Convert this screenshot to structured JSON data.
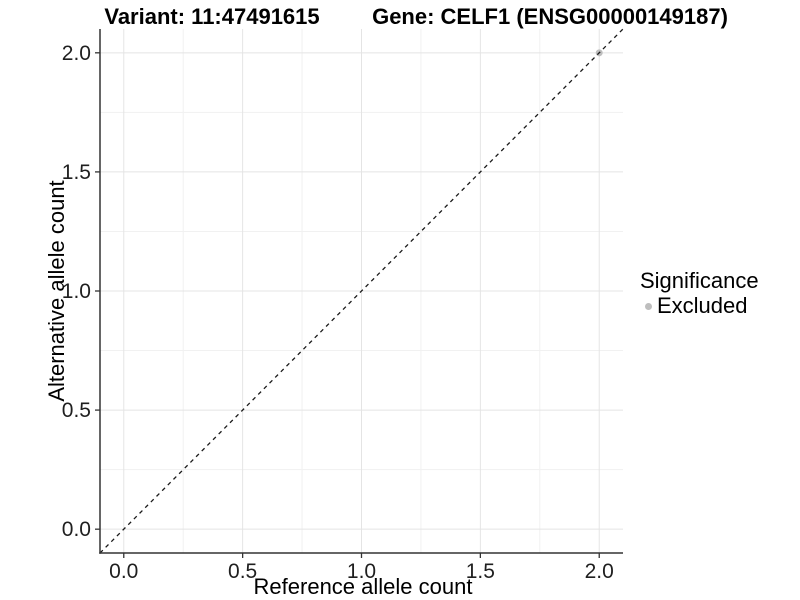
{
  "header": {
    "variant_title": "Variant: 11:47491615",
    "gene_title": "Gene: CELF1 (ENSG00000149187)"
  },
  "legend": {
    "title": "Significance",
    "items": [
      {
        "label": "Excluded",
        "color": "#bebebe",
        "marker": "circle-icon"
      }
    ]
  },
  "chart_data": {
    "type": "scatter",
    "title": "Variant: 11:47491615 / Gene: CELF1 (ENSG00000149187)",
    "xlabel": "Reference allele count",
    "ylabel": "Alternative allele count",
    "xlim": [
      -0.1,
      2.1
    ],
    "ylim": [
      -0.1,
      2.1
    ],
    "x_ticks": [
      0,
      0.5,
      1,
      1.5,
      2
    ],
    "x_tick_labels": [
      "0.0",
      "0.5",
      "1.0",
      "1.5",
      "2.0"
    ],
    "y_ticks": [
      0,
      0.5,
      1,
      1.5,
      2
    ],
    "y_tick_labels": [
      "0.0",
      "0.5",
      "1.0",
      "1.5",
      "2.0"
    ],
    "x_minor_ticks": [
      0.25,
      0.75,
      1.25,
      1.75
    ],
    "y_minor_ticks": [
      0.25,
      0.75,
      1.25,
      1.75
    ],
    "grid": true,
    "legend_position": "right",
    "series": [
      {
        "name": "Excluded",
        "color": "#bebebe",
        "points": [
          [
            2.0,
            2.0
          ]
        ]
      }
    ],
    "reference_line": {
      "style": "dashed",
      "slope": 1,
      "intercept": 0,
      "color": "#1a1a1a"
    },
    "colors": {
      "grid_major": "#e4e4e4",
      "grid_minor": "#f1f1f1",
      "axis_line": "#333333",
      "tick_text": "#1f1f1f"
    }
  }
}
